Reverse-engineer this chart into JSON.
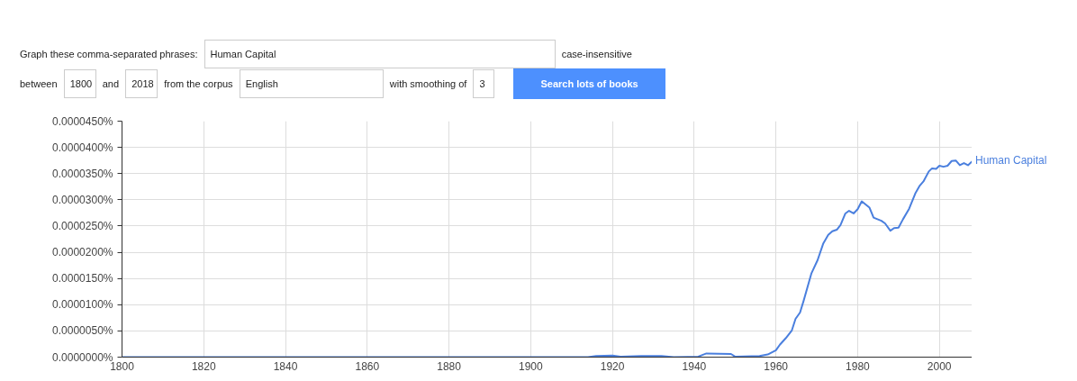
{
  "chart_data": {
    "type": "line",
    "annotations": [
      "Graph these comma-separated phrases:",
      "Human Capital",
      "case-insensitive",
      "between",
      "1800",
      "and",
      "2018",
      "from the corpus",
      "English",
      "with smoothing of",
      "3",
      "Search lots of books"
    ],
    "xlim": [
      1800,
      2008
    ],
    "xticks": [
      1800,
      1820,
      1840,
      1860,
      1880,
      1900,
      1920,
      1940,
      1960,
      1980,
      2000
    ],
    "ylim": [
      0,
      4.5e-05
    ],
    "yticks": [
      {
        "value": 0,
        "label": "0.0000000%"
      },
      {
        "value": 5e-06,
        "label": "0.0000050%"
      },
      {
        "value": 1e-05,
        "label": "0.0000100%"
      },
      {
        "value": 1.5e-05,
        "label": "0.0000150%"
      },
      {
        "value": 2e-05,
        "label": "0.0000200%"
      },
      {
        "value": 2.5e-05,
        "label": "0.0000250%"
      },
      {
        "value": 3e-05,
        "label": "0.0000300%"
      },
      {
        "value": 3.5e-05,
        "label": "0.0000350%"
      },
      {
        "value": 4e-05,
        "label": "0.0000400%"
      },
      {
        "value": 4.5e-05,
        "label": "0.0000450%"
      }
    ],
    "grid": true,
    "marker": "none",
    "line_style": "solid",
    "series": [
      {
        "name": "Human Capital",
        "color": "#4a7fde",
        "x": [
          1800,
          1895,
          1900,
          1914,
          1916,
          1920,
          1922,
          1927,
          1932,
          1935,
          1941,
          1943,
          1949,
          1950,
          1956,
          1958,
          1960,
          1961,
          1962.4,
          1963.9,
          1964.8,
          1965.9,
          1966.8,
          1968.7,
          1970.2,
          1971.6,
          1972.8,
          1973.8,
          1974.9,
          1975.8,
          1977,
          1977.9,
          1979,
          1980,
          1981,
          1982.9,
          1983.9,
          1985.8,
          1986.7,
          1988,
          1988.9,
          1990,
          1991.1,
          1992.6,
          1994.1,
          1995.2,
          1996.1,
          1997.4,
          1998.2,
          1999.2,
          2000,
          2001,
          2002,
          2003,
          2004,
          2005,
          2006,
          2007,
          2008
        ],
        "values": [
          0,
          0,
          0,
          0,
          2e-07,
          3e-07,
          1e-07,
          2e-07,
          2e-07,
          0,
          1e-07,
          7e-07,
          6e-07,
          1e-07,
          2e-07,
          5e-07,
          1.3e-06,
          2.4e-06,
          3.6e-06,
          5.1e-06,
          7.3e-06,
          8.5e-06,
          1.08e-05,
          1.6e-05,
          1.85e-05,
          2.17e-05,
          2.33e-05,
          2.4e-05,
          2.43e-05,
          2.52e-05,
          2.74e-05,
          2.79e-05,
          2.74e-05,
          2.82e-05,
          2.97e-05,
          2.85e-05,
          2.66e-05,
          2.6e-05,
          2.55e-05,
          2.41e-05,
          2.46e-05,
          2.47e-05,
          2.63e-05,
          2.83e-05,
          3.12e-05,
          3.27e-05,
          3.35e-05,
          3.54e-05,
          3.6e-05,
          3.59e-05,
          3.65e-05,
          3.63e-05,
          3.65e-05,
          3.74e-05,
          3.75e-05,
          3.66e-05,
          3.7e-05,
          3.66e-05,
          3.73e-05
        ]
      }
    ]
  }
}
